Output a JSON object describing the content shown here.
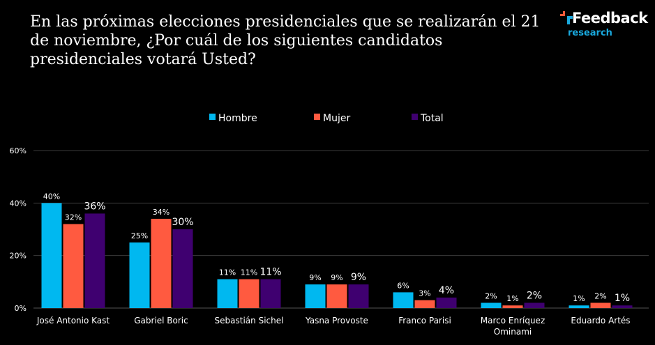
{
  "header": {
    "title": "En las próximas elecciones presidenciales que se realizarán el 21 de noviembre, ¿Por cuál de los siguientes candidatos presidenciales votará Usted?",
    "logo": {
      "brand": "Feedback",
      "sub": "research",
      "colors": {
        "red": "#f15a3a",
        "blue": "#19a9de"
      }
    }
  },
  "chart_data": {
    "type": "bar",
    "title": "En las próximas elecciones presidenciales que se realizarán el 21 de noviembre, ¿Por cuál de los siguientes candidatos presidenciales votará Usted?",
    "xlabel": "",
    "ylabel": "",
    "ylim": [
      0,
      60
    ],
    "yticks": [
      0,
      20,
      40,
      60
    ],
    "ytick_labels": [
      "0%",
      "20%",
      "40%",
      "60%"
    ],
    "grid": true,
    "legend_position": "top-center",
    "categories": [
      [
        "José Antonio Kast"
      ],
      [
        "Gabriel Boric"
      ],
      [
        "Sebastián Sichel"
      ],
      [
        "Yasna Provoste"
      ],
      [
        "Franco Parisi"
      ],
      [
        "Marco Enríquez",
        "Ominami"
      ],
      [
        "Eduardo Artés"
      ]
    ],
    "series": [
      {
        "name": "Hombre",
        "color": "#00b8f0",
        "values": [
          40,
          25,
          11,
          9,
          6,
          2,
          1
        ]
      },
      {
        "name": "Mujer",
        "color": "#ff5a40",
        "values": [
          32,
          34,
          11,
          9,
          3,
          1,
          2
        ]
      },
      {
        "name": "Total",
        "color": "#3f0070",
        "values": [
          36,
          30,
          11,
          9,
          4,
          2,
          1
        ]
      }
    ],
    "value_suffix": "%"
  }
}
